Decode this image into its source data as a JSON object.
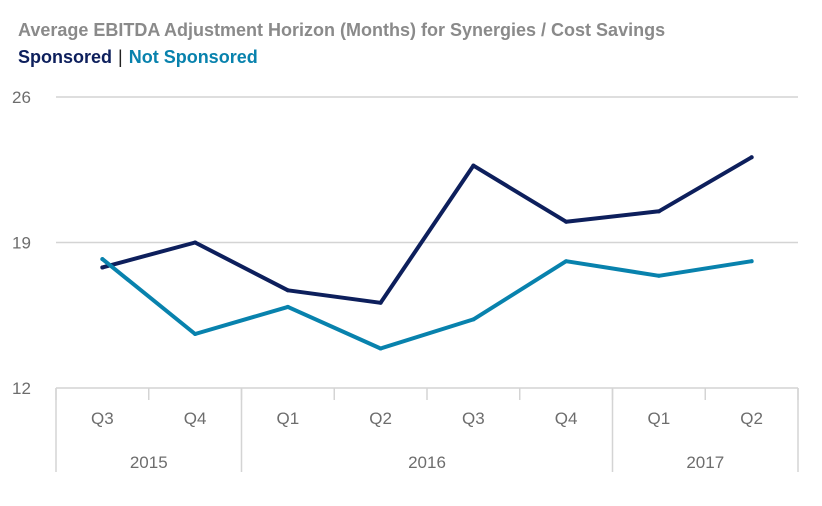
{
  "chart_data": {
    "type": "line",
    "title": "Average EBITDA Adjustment Horizon (Months) for Synergies / Cost Savings",
    "x": [
      {
        "quarter": "Q3",
        "year": "2015"
      },
      {
        "quarter": "Q4",
        "year": "2015"
      },
      {
        "quarter": "Q1",
        "year": "2016"
      },
      {
        "quarter": "Q2",
        "year": "2016"
      },
      {
        "quarter": "Q3",
        "year": "2016"
      },
      {
        "quarter": "Q4",
        "year": "2016"
      },
      {
        "quarter": "Q1",
        "year": "2017"
      },
      {
        "quarter": "Q2",
        "year": "2017"
      }
    ],
    "years": [
      {
        "label": "2015",
        "count": 2
      },
      {
        "label": "2016",
        "count": 4
      },
      {
        "label": "2017",
        "count": 2
      }
    ],
    "series": [
      {
        "name": "Sponsored",
        "color": "#0d1f5c",
        "values": [
          17.8,
          19.0,
          16.7,
          16.1,
          22.7,
          20.0,
          20.5,
          23.1
        ]
      },
      {
        "name": "Not Sponsored",
        "color": "#0882ad",
        "values": [
          18.2,
          14.6,
          15.9,
          13.9,
          15.3,
          18.1,
          17.4,
          18.1
        ]
      }
    ],
    "yticks": [
      12,
      19,
      26
    ],
    "ylim": [
      12,
      26
    ],
    "grid": true,
    "legend_position": "top-left"
  }
}
